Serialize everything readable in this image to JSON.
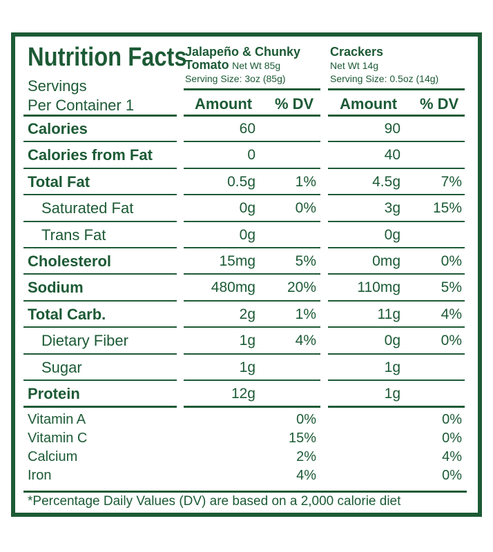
{
  "title": "Nutrition Facts",
  "servings": {
    "line1": "Servings",
    "line2": "Per Container 1"
  },
  "columns": [
    {
      "name_line1": "Jalapeño & Chunky",
      "name_line2_bold": "Tomato",
      "net_wt": "Net Wt 85g",
      "serving_size": "Serving Size: 3oz (85g)",
      "amount_header": "Amount",
      "dv_header": "% DV"
    },
    {
      "name_line1": "Crackers",
      "net_wt": "Net Wt 14g",
      "serving_size": "Serving Size: 0.5oz (14g)",
      "amount_header": "Amount",
      "dv_header": "% DV"
    }
  ],
  "rows": [
    {
      "label": "Calories",
      "bold": true,
      "a1": "60",
      "d1": "",
      "a2": "90",
      "d2": ""
    },
    {
      "label": "Calories from Fat",
      "bold": true,
      "a1": "0",
      "d1": "",
      "a2": "40",
      "d2": ""
    },
    {
      "label": "Total Fat",
      "bold": true,
      "a1": "0.5g",
      "d1": "1%",
      "a2": "4.5g",
      "d2": "7%"
    },
    {
      "label": "Saturated Fat",
      "bold": false,
      "a1": "0g",
      "d1": "0%",
      "a2": "3g",
      "d2": "15%"
    },
    {
      "label": "Trans Fat",
      "bold": false,
      "a1": "0g",
      "d1": "",
      "a2": "0g",
      "d2": ""
    },
    {
      "label": "Cholesterol",
      "bold": true,
      "a1": "15mg",
      "d1": "5%",
      "a2": "0mg",
      "d2": "0%"
    },
    {
      "label": "Sodium",
      "bold": true,
      "a1": "480mg",
      "d1": "20%",
      "a2": "110mg",
      "d2": "5%"
    },
    {
      "label": "Total Carb.",
      "bold": true,
      "a1": "2g",
      "d1": "1%",
      "a2": "11g",
      "d2": "4%"
    },
    {
      "label": "Dietary Fiber",
      "bold": false,
      "a1": "1g",
      "d1": "4%",
      "a2": "0g",
      "d2": "0%"
    },
    {
      "label": "Sugar",
      "bold": false,
      "a1": "1g",
      "d1": "",
      "a2": "1g",
      "d2": ""
    },
    {
      "label": "Protein",
      "bold": true,
      "a1": "12g",
      "d1": "",
      "a2": "1g",
      "d2": ""
    }
  ],
  "vitamins": [
    {
      "label": "Vitamin A",
      "d1": "0%",
      "d2": "0%"
    },
    {
      "label": "Vitamin C",
      "d1": "15%",
      "d2": "0%"
    },
    {
      "label": "Calcium",
      "d1": "2%",
      "d2": "4%"
    },
    {
      "label": "Iron",
      "d1": "4%",
      "d2": "0%"
    }
  ],
  "footnote": "*Percentage Daily Values (DV) are based on a 2,000 calorie diet",
  "colors": {
    "ink": "#1c5a35",
    "background": "#ffffff"
  }
}
